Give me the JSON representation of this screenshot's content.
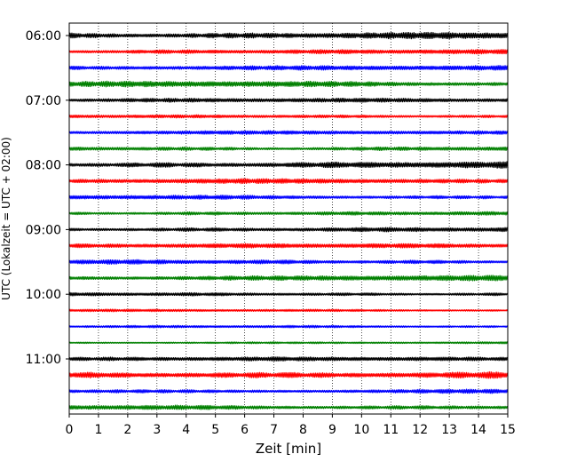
{
  "chart_data": {
    "type": "line",
    "title": "",
    "xlabel": "Zeit  [min]",
    "ylabel": "UTC (Lokalzeit = UTC + 02:00)",
    "xlim": [
      0,
      15
    ],
    "x_ticks": [
      0,
      1,
      2,
      3,
      4,
      5,
      6,
      7,
      8,
      9,
      10,
      11,
      12,
      13,
      14,
      15
    ],
    "x_tick_labels": [
      "0",
      "1",
      "2",
      "3",
      "4",
      "5",
      "6",
      "7",
      "8",
      "9",
      "10",
      "11",
      "12",
      "13",
      "14",
      "15"
    ],
    "y_tick_labels": [
      "06:00",
      "07:00",
      "08:00",
      "09:00",
      "10:00",
      "11:00"
    ],
    "grid": true,
    "trace_interval_minutes": 15,
    "trace_colors": [
      "#000000",
      "#ff0000",
      "#0000ff",
      "#008000"
    ],
    "traces": [
      {
        "start": "06:00",
        "color": "#000000",
        "amplitude": 0.85
      },
      {
        "start": "06:15",
        "color": "#ff0000",
        "amplitude": 0.55
      },
      {
        "start": "06:30",
        "color": "#0000ff",
        "amplitude": 0.6
      },
      {
        "start": "06:45",
        "color": "#008000",
        "amplitude": 0.75
      },
      {
        "start": "07:00",
        "color": "#000000",
        "amplitude": 0.5
      },
      {
        "start": "07:15",
        "color": "#ff0000",
        "amplitude": 0.4
      },
      {
        "start": "07:30",
        "color": "#0000ff",
        "amplitude": 0.45
      },
      {
        "start": "07:45",
        "color": "#008000",
        "amplitude": 0.55
      },
      {
        "start": "08:00",
        "color": "#000000",
        "amplitude": 0.8
      },
      {
        "start": "08:15",
        "color": "#ff0000",
        "amplitude": 0.6
      },
      {
        "start": "08:30",
        "color": "#0000ff",
        "amplitude": 0.55
      },
      {
        "start": "08:45",
        "color": "#008000",
        "amplitude": 0.45
      },
      {
        "start": "09:00",
        "color": "#000000",
        "amplitude": 0.6
      },
      {
        "start": "09:15",
        "color": "#ff0000",
        "amplitude": 0.55
      },
      {
        "start": "09:30",
        "color": "#0000ff",
        "amplitude": 0.6
      },
      {
        "start": "09:45",
        "color": "#008000",
        "amplitude": 0.7
      },
      {
        "start": "10:00",
        "color": "#000000",
        "amplitude": 0.45
      },
      {
        "start": "10:15",
        "color": "#ff0000",
        "amplitude": 0.3
      },
      {
        "start": "10:30",
        "color": "#0000ff",
        "amplitude": 0.3
      },
      {
        "start": "10:45",
        "color": "#008000",
        "amplitude": 0.3
      },
      {
        "start": "11:00",
        "color": "#000000",
        "amplitude": 0.5
      },
      {
        "start": "11:15",
        "color": "#ff0000",
        "amplitude": 0.95
      },
      {
        "start": "11:30",
        "color": "#0000ff",
        "amplitude": 0.55
      },
      {
        "start": "11:45",
        "color": "#008000",
        "amplitude": 0.6
      }
    ]
  }
}
